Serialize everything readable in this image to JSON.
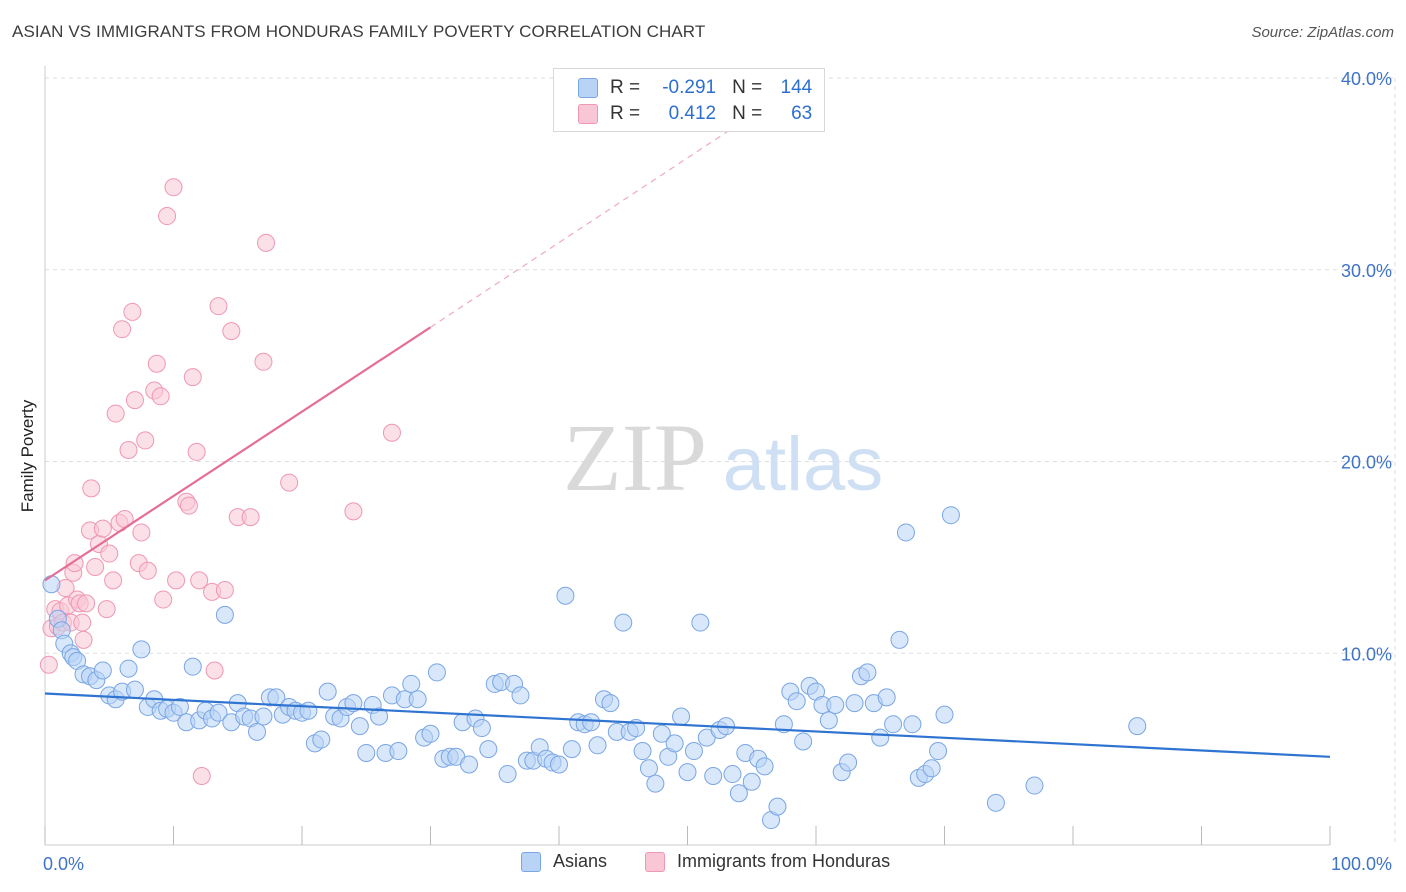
{
  "header": {
    "title": "ASIAN VS IMMIGRANTS FROM HONDURAS FAMILY POVERTY CORRELATION CHART",
    "source": "Source: ZipAtlas.com"
  },
  "watermark": {
    "zip": "ZIP",
    "atlas": "atlas"
  },
  "legend": {
    "rows": [
      {
        "r_label": "R =",
        "r_value": "-0.291",
        "n_label": "N =",
        "n_value": "144"
      },
      {
        "r_label": "R =",
        "r_value": "0.412",
        "n_label": "N =",
        "n_value": "63"
      }
    ]
  },
  "bottom_legend": {
    "asians": "Asians",
    "honduras": "Immigrants from Honduras"
  },
  "colors": {
    "asian_fill": "#b8d3f5",
    "asian_stroke": "#7aa6e3",
    "asian_line": "#2f74d0",
    "honduras_fill": "#f9c6d6",
    "honduras_stroke": "#ef97b3",
    "honduras_line": "#e46e96",
    "tick_text": "#3f73c8",
    "grid": "#dddddd"
  },
  "chart_data": {
    "type": "scatter",
    "title": "ASIAN VS IMMIGRANTS FROM HONDURAS FAMILY POVERTY CORRELATION CHART",
    "xlabel": "",
    "ylabel": "Family Poverty",
    "xlim": [
      0,
      100
    ],
    "ylim": [
      0,
      40
    ],
    "x_tick_labels": [
      "0.0%",
      "100.0%"
    ],
    "y_ticks": [
      10,
      20,
      30,
      40
    ],
    "y_tick_labels": [
      "10.0%",
      "20.0%",
      "30.0%",
      "40.0%"
    ],
    "grid": true,
    "series": [
      {
        "name": "Asians",
        "r": -0.291,
        "n": 144,
        "trend": {
          "x": [
            0,
            100
          ],
          "y": [
            7.9,
            4.6
          ],
          "dashed_extension": false
        },
        "points": [
          [
            0.5,
            13.6
          ],
          [
            1.0,
            11.8
          ],
          [
            1.3,
            11.2
          ],
          [
            1.5,
            10.5
          ],
          [
            2.0,
            10.0
          ],
          [
            2.2,
            9.8
          ],
          [
            2.5,
            9.6
          ],
          [
            3.0,
            8.9
          ],
          [
            3.5,
            8.8
          ],
          [
            4.0,
            8.6
          ],
          [
            4.5,
            9.1
          ],
          [
            5.0,
            7.8
          ],
          [
            5.5,
            7.6
          ],
          [
            6.0,
            8.0
          ],
          [
            6.5,
            9.2
          ],
          [
            7.0,
            8.1
          ],
          [
            7.5,
            10.2
          ],
          [
            8.0,
            7.2
          ],
          [
            8.5,
            7.6
          ],
          [
            9.0,
            7.0
          ],
          [
            9.5,
            7.1
          ],
          [
            10.0,
            6.9
          ],
          [
            10.5,
            7.2
          ],
          [
            11.0,
            6.4
          ],
          [
            11.5,
            9.3
          ],
          [
            12.0,
            6.5
          ],
          [
            12.5,
            7.0
          ],
          [
            13.0,
            6.6
          ],
          [
            13.5,
            6.9
          ],
          [
            14.0,
            12.0
          ],
          [
            14.5,
            6.4
          ],
          [
            15.0,
            7.4
          ],
          [
            15.5,
            6.7
          ],
          [
            16.0,
            6.6
          ],
          [
            16.5,
            5.9
          ],
          [
            17.0,
            6.7
          ],
          [
            17.5,
            7.7
          ],
          [
            18.0,
            7.7
          ],
          [
            18.5,
            6.8
          ],
          [
            19.0,
            7.2
          ],
          [
            19.5,
            7.0
          ],
          [
            20.0,
            6.9
          ],
          [
            20.5,
            7.0
          ],
          [
            21.0,
            5.3
          ],
          [
            21.5,
            5.5
          ],
          [
            22.0,
            8.0
          ],
          [
            22.5,
            6.7
          ],
          [
            23.0,
            6.6
          ],
          [
            23.5,
            7.2
          ],
          [
            24.0,
            7.4
          ],
          [
            24.5,
            6.2
          ],
          [
            25.0,
            4.8
          ],
          [
            25.5,
            7.3
          ],
          [
            26.0,
            6.7
          ],
          [
            26.5,
            4.8
          ],
          [
            27.0,
            7.8
          ],
          [
            27.5,
            4.9
          ],
          [
            28.0,
            7.6
          ],
          [
            28.5,
            8.4
          ],
          [
            29.0,
            7.6
          ],
          [
            29.5,
            5.6
          ],
          [
            30.0,
            5.8
          ],
          [
            30.5,
            9.0
          ],
          [
            31.0,
            4.5
          ],
          [
            31.5,
            4.6
          ],
          [
            32.0,
            4.6
          ],
          [
            32.5,
            6.4
          ],
          [
            33.0,
            4.2
          ],
          [
            33.5,
            6.6
          ],
          [
            34.0,
            6.1
          ],
          [
            34.5,
            5.0
          ],
          [
            35.0,
            8.4
          ],
          [
            35.5,
            8.5
          ],
          [
            36.0,
            3.7
          ],
          [
            36.5,
            8.4
          ],
          [
            37.0,
            7.8
          ],
          [
            37.5,
            4.4
          ],
          [
            38.0,
            4.4
          ],
          [
            38.5,
            5.1
          ],
          [
            39.0,
            4.5
          ],
          [
            39.5,
            4.3
          ],
          [
            40.0,
            4.2
          ],
          [
            40.5,
            13.0
          ],
          [
            41.0,
            5.0
          ],
          [
            41.5,
            6.4
          ],
          [
            42.0,
            6.3
          ],
          [
            42.5,
            6.4
          ],
          [
            43.0,
            5.2
          ],
          [
            43.5,
            7.6
          ],
          [
            44.0,
            7.4
          ],
          [
            44.5,
            5.9
          ],
          [
            45.0,
            11.6
          ],
          [
            45.5,
            5.9
          ],
          [
            46.0,
            6.1
          ],
          [
            46.5,
            4.9
          ],
          [
            47.0,
            4.0
          ],
          [
            47.5,
            3.2
          ],
          [
            48.0,
            5.8
          ],
          [
            48.5,
            4.6
          ],
          [
            49.0,
            5.3
          ],
          [
            49.5,
            6.7
          ],
          [
            50.0,
            3.8
          ],
          [
            50.5,
            4.9
          ],
          [
            51.0,
            11.6
          ],
          [
            51.5,
            5.6
          ],
          [
            52.0,
            3.6
          ],
          [
            52.5,
            6.0
          ],
          [
            53.0,
            6.2
          ],
          [
            53.5,
            3.7
          ],
          [
            54.0,
            2.7
          ],
          [
            54.5,
            4.8
          ],
          [
            55.0,
            3.3
          ],
          [
            55.5,
            4.5
          ],
          [
            56.0,
            4.1
          ],
          [
            56.5,
            1.3
          ],
          [
            57.0,
            2.0
          ],
          [
            57.5,
            6.3
          ],
          [
            58.0,
            8.0
          ],
          [
            58.5,
            7.5
          ],
          [
            59.0,
            5.4
          ],
          [
            59.5,
            8.3
          ],
          [
            60.0,
            8.0
          ],
          [
            60.5,
            7.3
          ],
          [
            61.0,
            6.5
          ],
          [
            61.5,
            7.3
          ],
          [
            62.0,
            3.8
          ],
          [
            62.5,
            4.3
          ],
          [
            63.0,
            7.4
          ],
          [
            63.5,
            8.8
          ],
          [
            64.0,
            9.0
          ],
          [
            64.5,
            7.4
          ],
          [
            65.0,
            5.6
          ],
          [
            65.5,
            7.7
          ],
          [
            66.0,
            6.3
          ],
          [
            66.5,
            10.7
          ],
          [
            67.0,
            16.3
          ],
          [
            67.5,
            6.3
          ],
          [
            68.0,
            3.5
          ],
          [
            68.5,
            3.7
          ],
          [
            69.0,
            4.0
          ],
          [
            69.5,
            4.9
          ],
          [
            70.0,
            6.8
          ],
          [
            70.5,
            17.2
          ],
          [
            74.0,
            2.2
          ],
          [
            77.0,
            3.1
          ],
          [
            85.0,
            6.2
          ]
        ]
      },
      {
        "name": "Immigrants from Honduras",
        "r": 0.412,
        "n": 63,
        "trend": {
          "x": [
            0,
            30
          ],
          "y": [
            13.8,
            27.0
          ],
          "dashed_extension": true,
          "dashed_to": {
            "x": [
              30,
              54
            ],
            "y": [
              27.0,
              37.6
            ]
          }
        },
        "points": [
          [
            0.3,
            9.4
          ],
          [
            0.5,
            11.3
          ],
          [
            0.8,
            12.3
          ],
          [
            1.0,
            11.4
          ],
          [
            1.2,
            12.2
          ],
          [
            1.4,
            11.6
          ],
          [
            1.6,
            13.4
          ],
          [
            1.8,
            12.5
          ],
          [
            2.0,
            11.6
          ],
          [
            2.2,
            14.2
          ],
          [
            2.3,
            14.7
          ],
          [
            2.5,
            12.8
          ],
          [
            2.7,
            12.6
          ],
          [
            2.9,
            11.6
          ],
          [
            3.0,
            10.7
          ],
          [
            3.2,
            12.6
          ],
          [
            3.5,
            16.4
          ],
          [
            3.6,
            18.6
          ],
          [
            3.9,
            14.5
          ],
          [
            4.2,
            15.7
          ],
          [
            4.5,
            16.5
          ],
          [
            4.8,
            12.3
          ],
          [
            5.0,
            15.2
          ],
          [
            5.3,
            13.8
          ],
          [
            5.5,
            22.5
          ],
          [
            5.8,
            16.8
          ],
          [
            6.0,
            26.9
          ],
          [
            6.2,
            17.0
          ],
          [
            6.5,
            20.6
          ],
          [
            6.8,
            27.8
          ],
          [
            7.0,
            23.2
          ],
          [
            7.3,
            14.7
          ],
          [
            7.5,
            16.3
          ],
          [
            7.8,
            21.1
          ],
          [
            8.0,
            14.3
          ],
          [
            8.5,
            23.7
          ],
          [
            8.7,
            25.1
          ],
          [
            9.0,
            23.4
          ],
          [
            9.2,
            12.8
          ],
          [
            9.5,
            32.8
          ],
          [
            10.0,
            34.3
          ],
          [
            10.2,
            13.8
          ],
          [
            11.0,
            17.9
          ],
          [
            11.2,
            17.7
          ],
          [
            11.5,
            24.4
          ],
          [
            11.8,
            20.5
          ],
          [
            12.0,
            13.8
          ],
          [
            12.2,
            3.6
          ],
          [
            13.0,
            13.2
          ],
          [
            13.2,
            9.1
          ],
          [
            13.5,
            28.1
          ],
          [
            14.0,
            13.3
          ],
          [
            14.5,
            26.8
          ],
          [
            15.0,
            17.1
          ],
          [
            16.0,
            17.1
          ],
          [
            17.0,
            25.2
          ],
          [
            17.2,
            31.4
          ],
          [
            19.0,
            18.9
          ],
          [
            24.0,
            17.4
          ],
          [
            27.0,
            21.5
          ]
        ]
      }
    ]
  }
}
